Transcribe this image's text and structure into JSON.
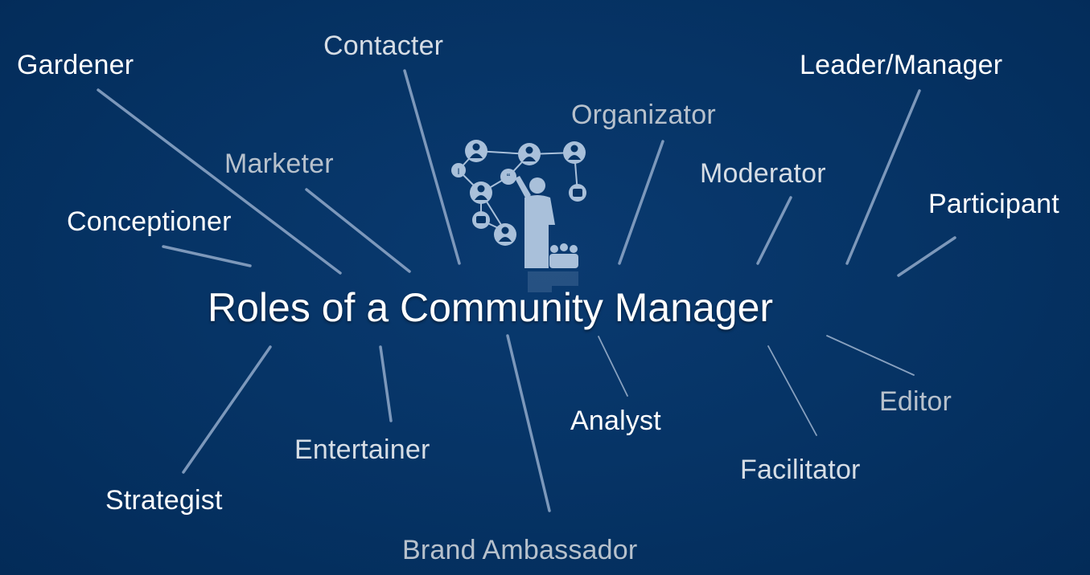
{
  "title": "Roles of a Community Manager",
  "colors": {
    "background": "#063466",
    "line": "#8aa3c4",
    "text": "#ffffff",
    "muted_text": "#b7c1cc",
    "icon": "#a9c0da"
  },
  "roles": {
    "gardener": "Gardener",
    "contacter": "Contacter",
    "leader_manager": "Leader/Manager",
    "organizator": "Organizator",
    "marketer": "Marketer",
    "moderator": "Moderator",
    "participant": "Participant",
    "conceptioner": "Conceptioner",
    "strategist": "Strategist",
    "entertainer": "Entertainer",
    "brand_ambassador": "Brand Ambassador",
    "analyst": "Analyst",
    "facilitator": "Facilitator",
    "editor": "Editor"
  },
  "icon": "community-network-presenter-icon"
}
